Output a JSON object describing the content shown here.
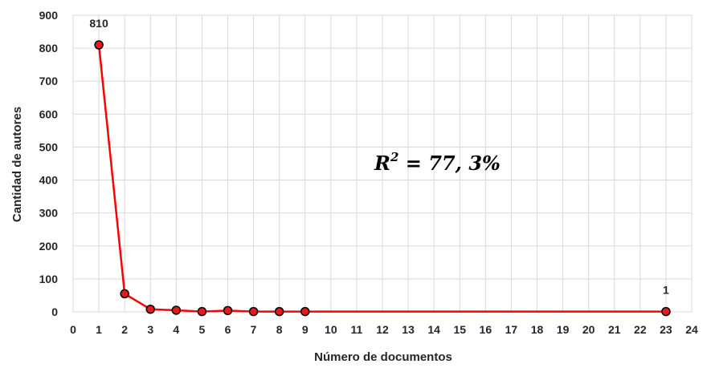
{
  "chart_data": {
    "type": "line",
    "x": [
      1,
      2,
      3,
      4,
      5,
      6,
      7,
      8,
      9,
      23
    ],
    "series": [
      {
        "values": [
          810,
          55,
          8,
          5,
          1,
          4,
          1,
          1,
          1,
          1
        ]
      }
    ],
    "xlabel": "Número de documentos",
    "ylabel": "Cantidad de autores",
    "xlim": [
      0,
      24
    ],
    "ylim": [
      0,
      900
    ],
    "xticks": [
      "0",
      "1",
      "2",
      "3",
      "4",
      "5",
      "6",
      "7",
      "8",
      "9",
      "10",
      "11",
      "12",
      "13",
      "14",
      "15",
      "16",
      "17",
      "18",
      "19",
      "20",
      "21",
      "22",
      "23",
      "24"
    ],
    "yticks": [
      "0",
      "100",
      "200",
      "300",
      "400",
      "500",
      "600",
      "700",
      "800",
      "900"
    ],
    "data_labels": [
      {
        "x": 1,
        "y": 810,
        "text": "810"
      },
      {
        "x": 23,
        "y": 1,
        "text": "1"
      }
    ],
    "annotation": {
      "base": "R",
      "exponent": "2",
      "rest": " = 77, 3%"
    },
    "grid": true,
    "legend": "none",
    "colors": {
      "line": "#ff0000",
      "marker_fill": "#e41a1c",
      "marker_edge": "#000000",
      "grid": "#d9d9d9"
    }
  }
}
